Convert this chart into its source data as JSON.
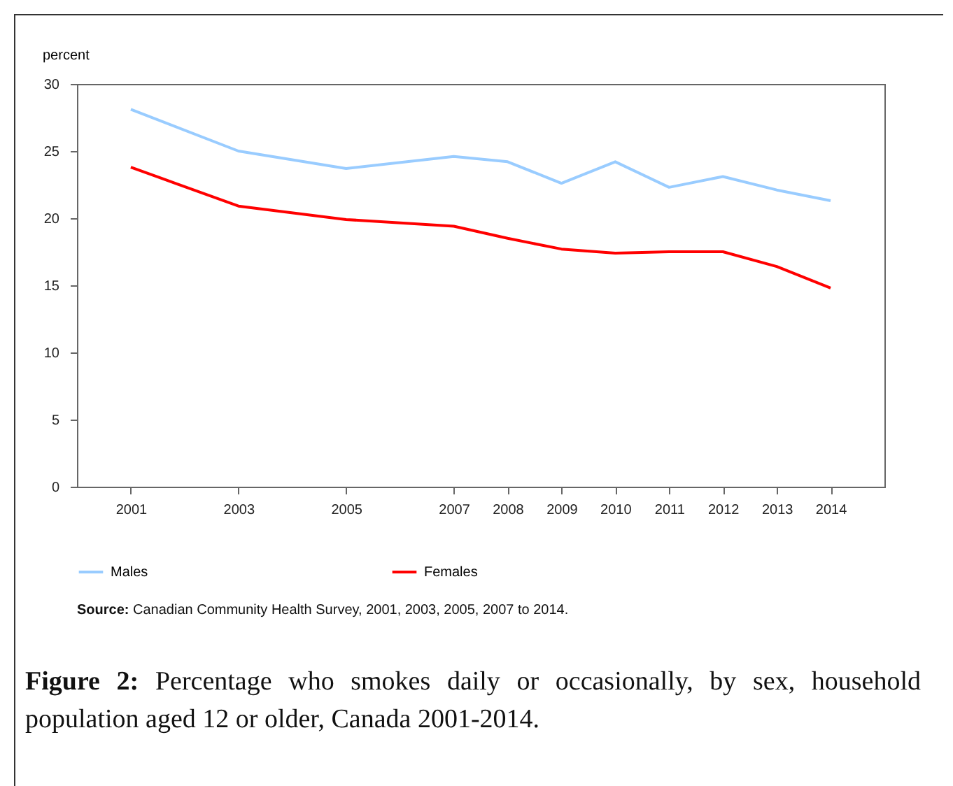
{
  "chart_data": {
    "type": "line",
    "ylabel": "percent",
    "x": [
      2001,
      2003,
      2005,
      2007,
      2008,
      2009,
      2010,
      2011,
      2012,
      2013,
      2014
    ],
    "series": [
      {
        "name": "Males",
        "color": "#99ccff",
        "values": [
          28.1,
          25.0,
          23.7,
          24.6,
          24.2,
          22.6,
          24.2,
          22.3,
          23.1,
          22.1,
          21.3
        ]
      },
      {
        "name": "Females",
        "color": "#ff0000",
        "values": [
          23.8,
          20.9,
          19.9,
          19.4,
          18.5,
          17.7,
          17.4,
          17.5,
          17.5,
          16.4,
          14.8
        ]
      }
    ],
    "xlim": [
      2000,
      2015
    ],
    "xticks": [
      2001,
      2003,
      2005,
      2007,
      2008,
      2009,
      2010,
      2011,
      2012,
      2013,
      2014
    ],
    "ylim": [
      0,
      30
    ],
    "yticks": [
      0,
      5,
      10,
      15,
      20,
      25,
      30
    ],
    "grid": false,
    "legend": "bottom",
    "marker": "none",
    "line_style": "solid",
    "annotations": [
      "Source: Canadian Community Health Survey, 2001, 2003, 2005, 2007 to 2014.",
      "Figure 2: Percentage who smokes daily or occasionally, by sex, household population aged 12 or older, Canada 2001-2014."
    ]
  }
}
